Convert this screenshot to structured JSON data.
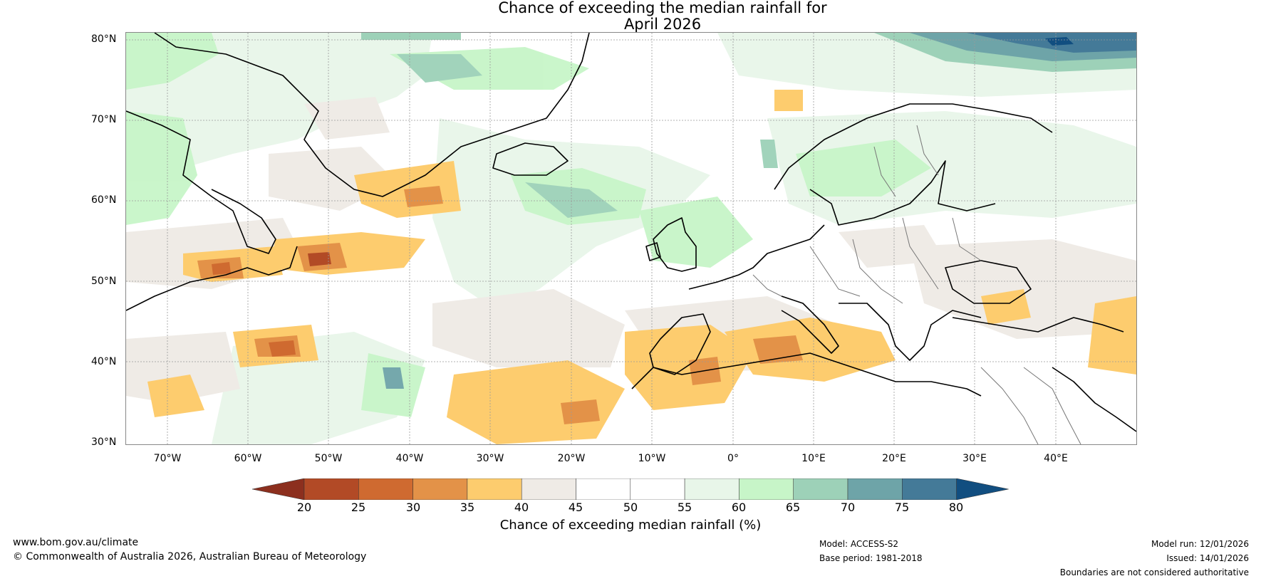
{
  "title": {
    "line1": "Chance of exceeding the median rainfall for",
    "line2": "April 2026"
  },
  "latitudes": [
    "80°N",
    "70°N",
    "60°N",
    "50°N",
    "40°N",
    "30°N"
  ],
  "longitudes": [
    "70°W",
    "60°W",
    "50°W",
    "40°W",
    "30°W",
    "20°W",
    "10°W",
    "0°",
    "10°E",
    "20°E",
    "30°E",
    "40°E"
  ],
  "colorbar": {
    "title": "Chance of exceeding median rainfall (%)",
    "ticks": [
      "20",
      "25",
      "30",
      "35",
      "40",
      "45",
      "50",
      "55",
      "60",
      "65",
      "70",
      "75",
      "80"
    ],
    "colors": [
      "#8c2f1e",
      "#b24a26",
      "#cf6a30",
      "#e39248",
      "#fdcc6e",
      "#efebe6",
      "#ffffff",
      "#ffffff",
      "#e8f6e9",
      "#c7f5c8",
      "#9dd1b8",
      "#6ea4a8",
      "#447a98",
      "#114e80"
    ]
  },
  "footer": {
    "website": "www.bom.gov.au/climate",
    "copyright": "© Commonwealth of Australia 2026, Australian Bureau of Meteorology",
    "model": "Model: ACCESS-S2",
    "base_period": "Base period: 1981-2018",
    "model_run": "Model run: 12/01/2026",
    "issued": "Issued: 14/01/2026",
    "boundaries": "Boundaries are not considered authoritative"
  }
}
